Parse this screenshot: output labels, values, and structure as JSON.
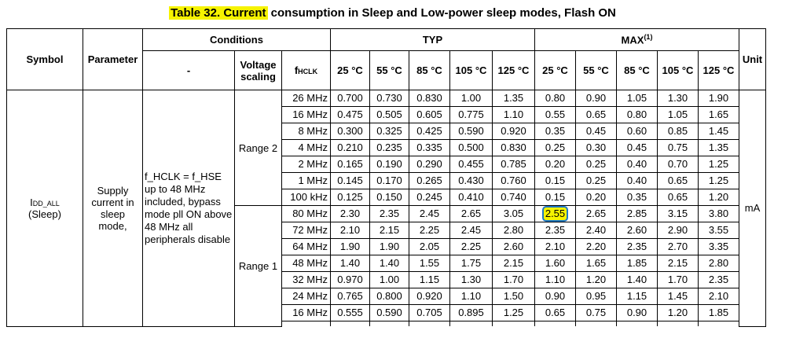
{
  "title": {
    "highlight": "Table 32. Current",
    "rest": " consumption in Sleep and Low-power sleep modes, Flash ON"
  },
  "headers": {
    "symbol": "Symbol",
    "parameter": "Parameter",
    "conditions": "Conditions",
    "dash": "-",
    "voltage_scaling": "Voltage scaling",
    "fhclk_main": "f",
    "fhclk_sub": "HCLK",
    "typ": "TYP",
    "max": "MAX",
    "max_sup": "(1)",
    "unit": "Unit",
    "temps": [
      "25 °C",
      "55 °C",
      "85 °C",
      "105 °C",
      "125 °C"
    ]
  },
  "body": {
    "symbol_main": "I",
    "symbol_sub": "DD_ALL",
    "symbol_mode": "(Sleep)",
    "parameter": "Supply current in sleep mode,",
    "condition_lines": [
      "f_HCLK = f_HSE up to 48 MHz included, bypass mode pll ON above 48 MHz all peripherals disable"
    ],
    "unit": "mA",
    "range2": "Range 2",
    "range1": "Range 1"
  },
  "rows": [
    {
      "freq": "26 MHz",
      "typ": [
        "0.700",
        "0.730",
        "0.830",
        "1.00",
        "1.35"
      ],
      "max": [
        "0.80",
        "0.90",
        "1.05",
        "1.30",
        "1.90"
      ]
    },
    {
      "freq": "16 MHz",
      "typ": [
        "0.475",
        "0.505",
        "0.605",
        "0.775",
        "1.10"
      ],
      "max": [
        "0.55",
        "0.65",
        "0.80",
        "1.05",
        "1.65"
      ]
    },
    {
      "freq": "8 MHz",
      "typ": [
        "0.300",
        "0.325",
        "0.425",
        "0.590",
        "0.920"
      ],
      "max": [
        "0.35",
        "0.45",
        "0.60",
        "0.85",
        "1.45"
      ]
    },
    {
      "freq": "4 MHz",
      "typ": [
        "0.210",
        "0.235",
        "0.335",
        "0.500",
        "0.830"
      ],
      "max": [
        "0.25",
        "0.30",
        "0.45",
        "0.75",
        "1.35"
      ]
    },
    {
      "freq": "2 MHz",
      "typ": [
        "0.165",
        "0.190",
        "0.290",
        "0.455",
        "0.785"
      ],
      "max": [
        "0.20",
        "0.25",
        "0.40",
        "0.70",
        "1.25"
      ]
    },
    {
      "freq": "1 MHz",
      "typ": [
        "0.145",
        "0.170",
        "0.265",
        "0.430",
        "0.760"
      ],
      "max": [
        "0.15",
        "0.25",
        "0.40",
        "0.65",
        "1.25"
      ]
    },
    {
      "freq": "100 kHz",
      "typ": [
        "0.125",
        "0.150",
        "0.245",
        "0.410",
        "0.740"
      ],
      "max": [
        "0.15",
        "0.20",
        "0.35",
        "0.65",
        "1.20"
      ]
    },
    {
      "freq": "80 MHz",
      "typ": [
        "2.30",
        "2.35",
        "2.45",
        "2.65",
        "3.05"
      ],
      "max": [
        "2.55",
        "2.65",
        "2.85",
        "3.15",
        "3.80"
      ]
    },
    {
      "freq": "72 MHz",
      "typ": [
        "2.10",
        "2.15",
        "2.25",
        "2.45",
        "2.80"
      ],
      "max": [
        "2.35",
        "2.40",
        "2.60",
        "2.90",
        "3.55"
      ]
    },
    {
      "freq": "64 MHz",
      "typ": [
        "1.90",
        "1.90",
        "2.05",
        "2.25",
        "2.60"
      ],
      "max": [
        "2.10",
        "2.20",
        "2.35",
        "2.70",
        "3.35"
      ]
    },
    {
      "freq": "48 MHz",
      "typ": [
        "1.40",
        "1.40",
        "1.55",
        "1.75",
        "2.15"
      ],
      "max": [
        "1.60",
        "1.65",
        "1.85",
        "2.15",
        "2.80"
      ]
    },
    {
      "freq": "32 MHz",
      "typ": [
        "0.970",
        "1.00",
        "1.15",
        "1.30",
        "1.70"
      ],
      "max": [
        "1.10",
        "1.20",
        "1.40",
        "1.70",
        "2.35"
      ]
    },
    {
      "freq": "24 MHz",
      "typ": [
        "0.765",
        "0.800",
        "0.920",
        "1.10",
        "1.50"
      ],
      "max": [
        "0.90",
        "0.95",
        "1.15",
        "1.45",
        "2.10"
      ]
    },
    {
      "freq": "16 MHz",
      "typ": [
        "0.555",
        "0.590",
        "0.705",
        "0.895",
        "1.25"
      ],
      "max": [
        "0.65",
        "0.75",
        "0.90",
        "1.20",
        "1.85"
      ]
    }
  ],
  "highlighted_cell": {
    "row": 7,
    "col": "max",
    "index": 0
  }
}
